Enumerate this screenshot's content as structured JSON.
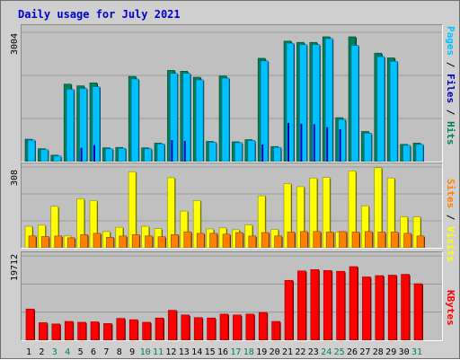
{
  "title": "Daily usage for July 2021",
  "colors": {
    "hits": "#00805a",
    "files": "#00c0ff",
    "pages": "#0000c0",
    "visits": "#ffff00",
    "sites": "#ff8000",
    "kbytes": "#ff0000",
    "weekend_day": "#00805a",
    "weekday": "#000000"
  },
  "panels": {
    "top": {
      "max_label": "3004",
      "legend": [
        {
          "text": "Pages",
          "color": "#00c0ff"
        },
        {
          "text": " / ",
          "color": "#000000"
        },
        {
          "text": "Files",
          "color": "#0000c0"
        },
        {
          "text": " / ",
          "color": "#000000"
        },
        {
          "text": "Hits",
          "color": "#00805a"
        }
      ]
    },
    "middle": {
      "max_label": "308",
      "legend": [
        {
          "text": "Sites",
          "color": "#ff8000"
        },
        {
          "text": " / ",
          "color": "#000000"
        },
        {
          "text": "Visits",
          "color": "#ffff00"
        }
      ]
    },
    "bottom": {
      "max_label": "19712",
      "legend": [
        {
          "text": "KBytes",
          "color": "#ff0000"
        }
      ]
    }
  },
  "chart_data": {
    "type": "bar",
    "title": "Daily usage for July 2021",
    "categories": [
      "1",
      "2",
      "3",
      "4",
      "5",
      "6",
      "7",
      "8",
      "9",
      "10",
      "11",
      "12",
      "13",
      "14",
      "15",
      "16",
      "17",
      "18",
      "19",
      "20",
      "21",
      "22",
      "23",
      "24",
      "25",
      "26",
      "27",
      "28",
      "29",
      "30",
      "31"
    ],
    "weekend_days": [
      "3",
      "4",
      "10",
      "11",
      "17",
      "18",
      "24",
      "25",
      "31"
    ],
    "series": [
      {
        "name": "Hits",
        "panel": "top",
        "values": [
          520,
          300,
          150,
          1800,
          1760,
          1830,
          320,
          330,
          1980,
          320,
          430,
          2120,
          2100,
          1960,
          470,
          1990,
          460,
          510,
          2400,
          350,
          2800,
          2770,
          2770,
          2900,
          1020,
          2900,
          700,
          2520,
          2410,
          400,
          430
        ]
      },
      {
        "name": "Files",
        "panel": "top",
        "values": [
          500,
          280,
          130,
          1680,
          1700,
          1740,
          300,
          310,
          1920,
          300,
          410,
          2050,
          2050,
          1900,
          450,
          1940,
          440,
          490,
          2340,
          330,
          2750,
          2720,
          2720,
          2860,
          980,
          2700,
          660,
          2440,
          2330,
          380,
          400
        ]
      },
      {
        "name": "Pages",
        "panel": "top",
        "values": [
          0,
          0,
          0,
          0,
          320,
          380,
          0,
          0,
          0,
          0,
          0,
          500,
          480,
          0,
          0,
          0,
          0,
          0,
          400,
          0,
          900,
          880,
          870,
          800,
          750,
          0,
          0,
          0,
          0,
          0,
          0
        ]
      },
      {
        "name": "Visits",
        "panel": "middle",
        "values": [
          82,
          86,
          158,
          45,
          187,
          180,
          62,
          78,
          290,
          82,
          73,
          267,
          140,
          180,
          72,
          76,
          69,
          87,
          198,
          70,
          245,
          233,
          266,
          268,
          60,
          293,
          160,
          305,
          266,
          118,
          118
        ]
      },
      {
        "name": "Sites",
        "panel": "middle",
        "values": [
          45,
          43,
          45,
          38,
          50,
          55,
          40,
          45,
          50,
          45,
          42,
          50,
          61,
          55,
          55,
          52,
          58,
          45,
          58,
          45,
          60,
          62,
          62,
          60,
          62,
          60,
          62,
          60,
          60,
          55,
          45
        ]
      },
      {
        "name": "KBytes",
        "panel": "bottom",
        "values": [
          7300,
          4100,
          3800,
          4400,
          4200,
          4300,
          3900,
          5100,
          4800,
          4200,
          5200,
          7000,
          5900,
          5300,
          5200,
          6100,
          5900,
          6100,
          6500,
          4400,
          14000,
          16200,
          16500,
          16300,
          16100,
          17200,
          14800,
          15100,
          15200,
          15400,
          13200
        ]
      }
    ],
    "ylim_top": [
      0,
      3004
    ],
    "ylim_middle": [
      0,
      308
    ],
    "ylim_bottom": [
      0,
      19712
    ]
  }
}
